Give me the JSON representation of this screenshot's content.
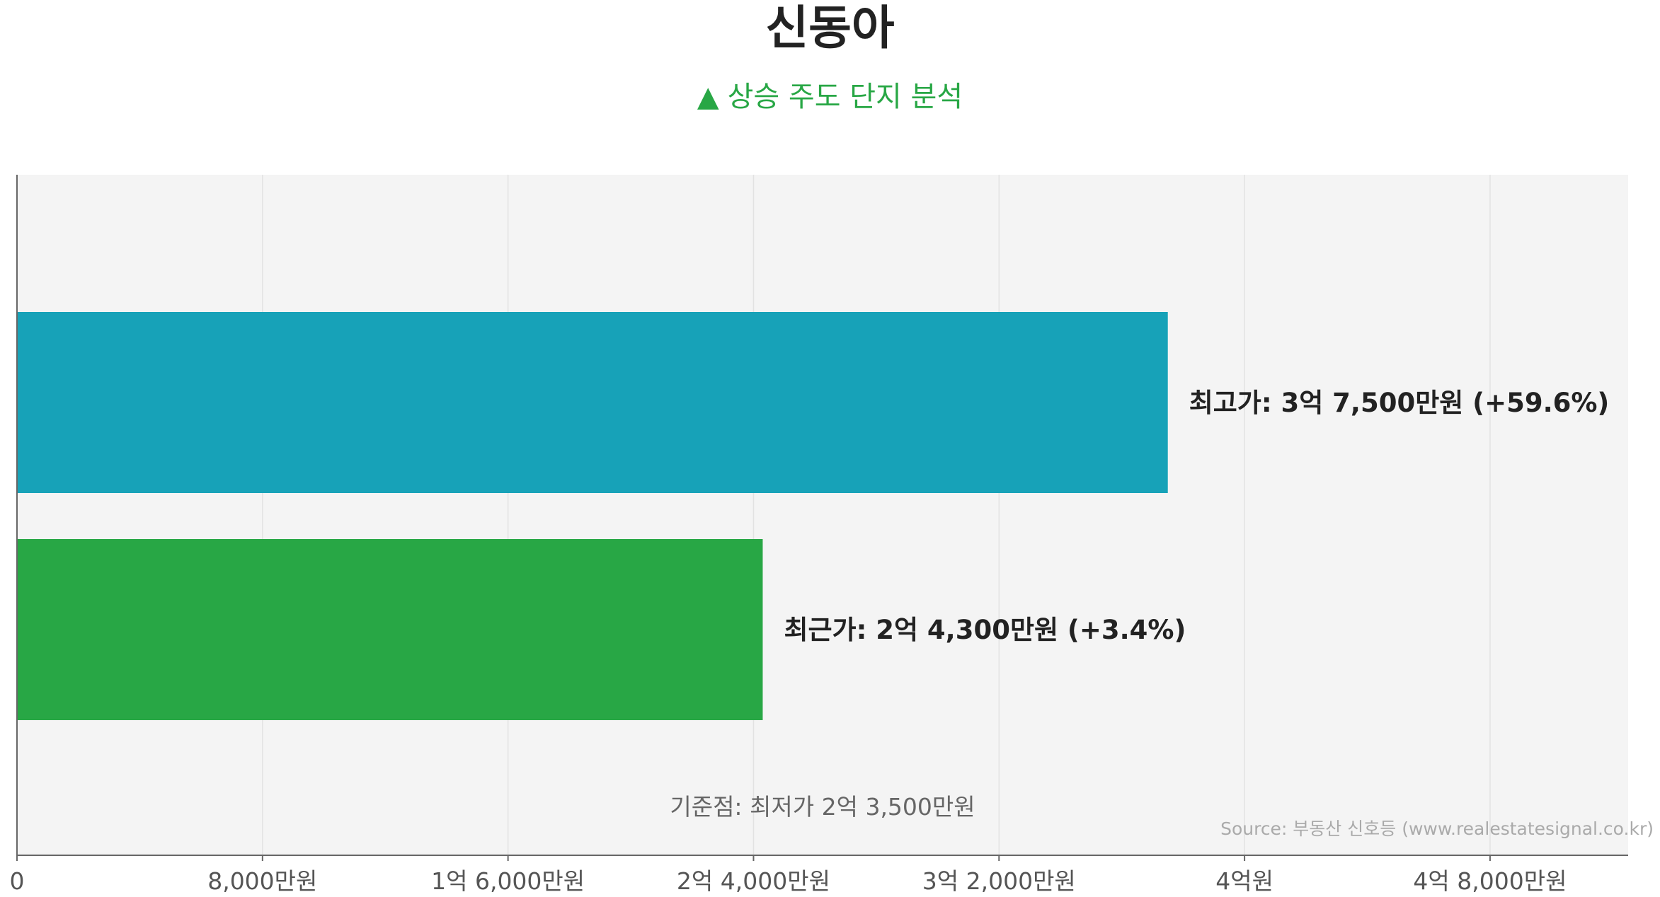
{
  "title": "신동아",
  "subtitle": {
    "icon": "triangle-up-icon",
    "text": "상승 주도 단지 분석",
    "color": "#28a745"
  },
  "chart_data": {
    "type": "bar",
    "orientation": "horizontal",
    "unit": "만원",
    "xlim": [
      0,
      52500
    ],
    "xticks": [
      {
        "value": 0,
        "label": "0"
      },
      {
        "value": 8000,
        "label": "8,000만원"
      },
      {
        "value": 16000,
        "label": "1억 6,000만원"
      },
      {
        "value": 24000,
        "label": "2억 4,000만원"
      },
      {
        "value": 32000,
        "label": "3억 2,000만원"
      },
      {
        "value": 40000,
        "label": "4억원"
      },
      {
        "value": 48000,
        "label": "4억 8,000만원"
      }
    ],
    "bars": [
      {
        "value": 37500,
        "label": "최고가: 3억 7,500만원 (+59.6%)",
        "color": "#17a2b8"
      },
      {
        "value": 24300,
        "label": "최근가: 2억 4,300만원 (+3.4%)",
        "color": "#28a745"
      }
    ],
    "grid": true,
    "plot_background": "#f4f4f4",
    "baseline_note": "기준점: 최저가 2억 3,500만원"
  },
  "source": "Source: 부동산 신호등 (www.realestatesignal.co.kr)"
}
